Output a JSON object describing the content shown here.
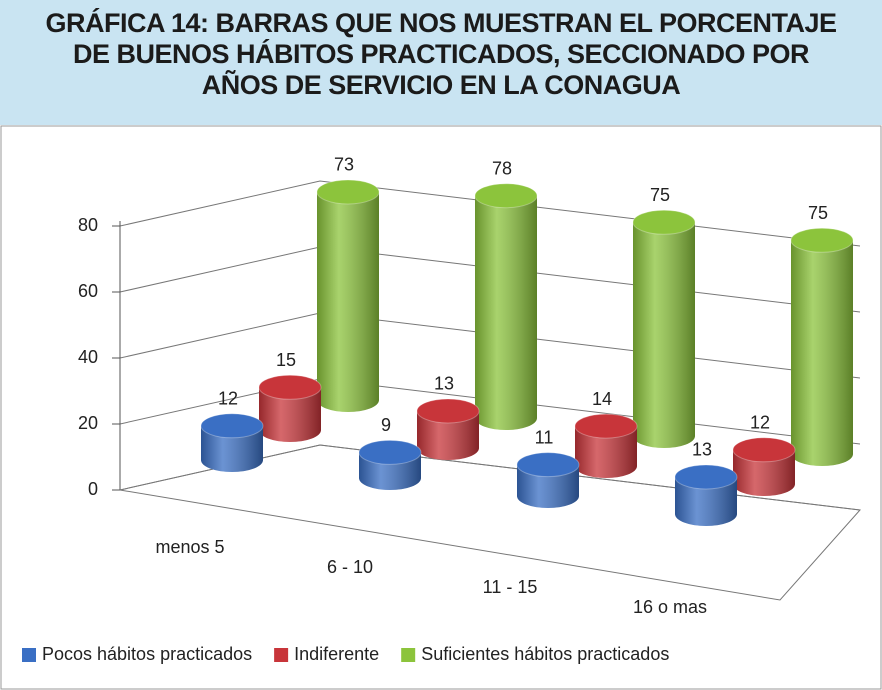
{
  "chart_data": {
    "type": "bar3d",
    "title": "GRÁFICA 14: BARRAS QUE NOS MUESTRAN EL PORCENTAJE DE BUENOS HÁBITOS PRACTICADOS, SECCIONADO POR AÑOS DE SERVICIO EN LA CONAGUA",
    "categories": [
      "menos 5",
      "6 - 10",
      "11 - 15",
      "16 o mas"
    ],
    "series": [
      {
        "name": "Pocos hábitos practicados",
        "color": "#3a6fc4",
        "values": [
          12,
          9,
          11,
          13
        ]
      },
      {
        "name": "Indiferente",
        "color": "#c8353a",
        "values": [
          15,
          13,
          14,
          12
        ]
      },
      {
        "name": "Suficientes hábitos practicados",
        "color": "#8cc43c",
        "values": [
          73,
          78,
          75,
          75
        ]
      }
    ],
    "ylim": [
      0,
      80
    ],
    "yticks": [
      0,
      20,
      40,
      60,
      80
    ],
    "grid": true,
    "legend": "bottom"
  }
}
